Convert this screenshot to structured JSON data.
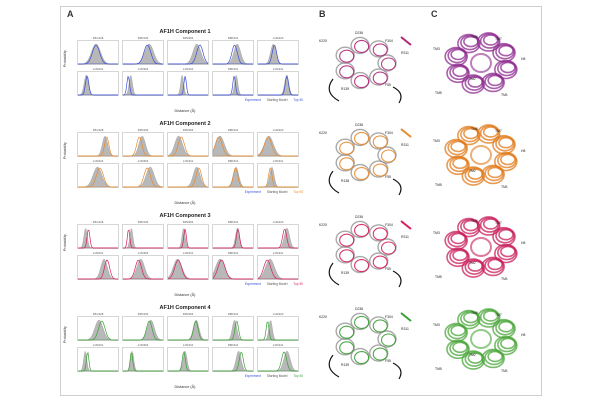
{
  "panels": {
    "a": "A",
    "b": "B",
    "c": "C"
  },
  "panel_a": {
    "y_label": "Probability",
    "x_label": "Distance (Å)",
    "legend": [
      "Experiment",
      "Starting Model",
      "Top 50"
    ],
    "components": [
      {
        "title": "AF1H Component 1",
        "color": "#3b4fd6",
        "labels": [
          "D51/128",
          "D05/134",
          "D05/304",
          "D80/311",
          "L1N/220",
          "L1N/231",
          "L1N/304",
          "L1N/311",
          "D80/311",
          "L1N/311"
        ]
      },
      {
        "title": "AF1H Component 2",
        "color": "#e88a2a",
        "labels": [
          "D51/128",
          "D05/134",
          "D05/304",
          "D80/311",
          "L1N/220",
          "L1N/231",
          "L1N/304",
          "L1N/311",
          "D80/311",
          "L1N/311"
        ]
      },
      {
        "title": "AF1H Component 3",
        "color": "#d6205e",
        "labels": [
          "D51/128",
          "D05/134",
          "D05/304",
          "D80/311",
          "L1N/220",
          "L1N/231",
          "L1N/304",
          "L1N/311",
          "D80/311",
          "L1N/311"
        ]
      },
      {
        "title": "AF1H Component 4",
        "color": "#3aa035",
        "labels": [
          "D51/128",
          "D05/134",
          "D05/304",
          "D80/311",
          "L1N/220",
          "L1N/231",
          "L1N/304",
          "L1N/311",
          "D80/311",
          "L1N/311"
        ]
      }
    ]
  },
  "panel_b": {
    "structures": [
      {
        "color": "#b2267a",
        "labels": [
          "K220",
          "D236",
          "F304",
          "R311",
          "R139",
          "F55"
        ]
      },
      {
        "color": "#e88a2a",
        "labels": [
          "K220",
          "D236",
          "F304",
          "R311",
          "R138",
          "F55"
        ]
      },
      {
        "color": "#d6205e",
        "labels": [
          "K220",
          "D236",
          "F304",
          "R311",
          "R139",
          "F55"
        ]
      },
      {
        "color": "#3aa035",
        "labels": [
          "K220",
          "D236",
          "F304",
          "R311",
          "R139",
          "F55"
        ]
      }
    ]
  },
  "panel_c": {
    "structures": [
      {
        "color": "#8e2a8f",
        "labels": [
          "TM3",
          "TM6",
          "TM7",
          "H8",
          "TM5",
          "TM2",
          "TM1"
        ]
      },
      {
        "color": "#e07a1a",
        "labels": [
          "TM3",
          "TM6",
          "TM7",
          "H8",
          "TM5",
          "TM2",
          "TM1"
        ]
      },
      {
        "color": "#c81e5a",
        "labels": [
          "TM3",
          "TM6",
          "TM7",
          "H8",
          "TM5",
          "TM2",
          "TM1"
        ]
      },
      {
        "color": "#4aa63a",
        "labels": [
          "TM3",
          "TM6",
          "TM7",
          "H8",
          "TM5",
          "TM2",
          "TM1"
        ]
      }
    ]
  }
}
